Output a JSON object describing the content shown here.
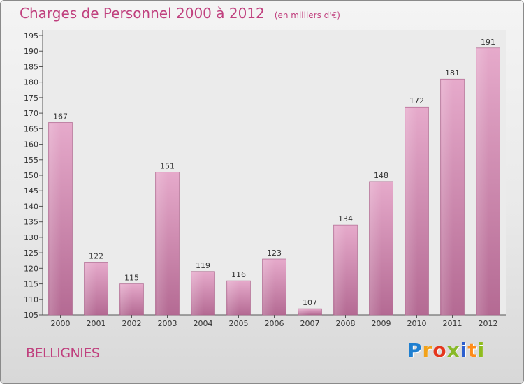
{
  "header": {
    "title": "Charges de Personnel 2000 à 2012",
    "subtitle": "(en milliers d'€)"
  },
  "footer": {
    "commune": "BELLIGNIES",
    "brand": "Proxiti"
  },
  "colors": {
    "accent": "#c0407e",
    "bar": "#d47fae",
    "logo_letters": [
      "#1f7fd0",
      "#f2a21a",
      "#e5361d",
      "#88b928",
      "#2c5fcf",
      "#ff8c1a",
      "#8fbc1f"
    ]
  },
  "chart_data": {
    "type": "bar",
    "title": "Charges de Personnel 2000 à 2012",
    "subtitle": "(en milliers d'€)",
    "categories": [
      "2000",
      "2001",
      "2002",
      "2003",
      "2004",
      "2005",
      "2006",
      "2007",
      "2008",
      "2009",
      "2010",
      "2011",
      "2012"
    ],
    "values": [
      167,
      122,
      115,
      151,
      119,
      116,
      123,
      107,
      134,
      148,
      172,
      181,
      191
    ],
    "ylim": [
      105,
      195
    ],
    "yticks": [
      105,
      110,
      115,
      120,
      125,
      130,
      135,
      140,
      145,
      150,
      155,
      160,
      165,
      170,
      175,
      180,
      185,
      190,
      195
    ],
    "data_labels": true,
    "grid": false,
    "legend": "none"
  }
}
